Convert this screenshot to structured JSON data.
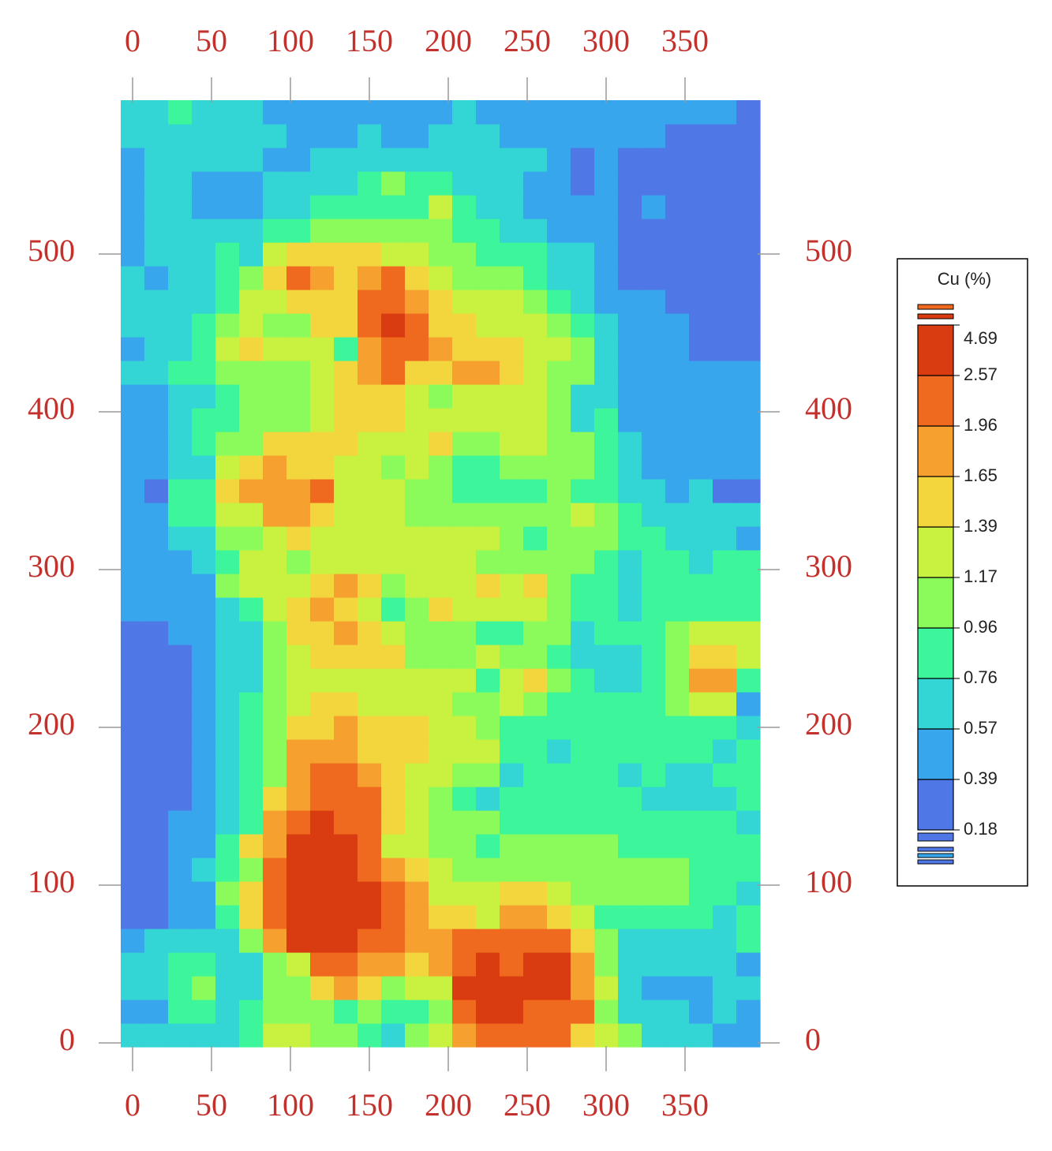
{
  "chart_data": {
    "type": "heatmap",
    "x": [
      0,
      15,
      30,
      45,
      60,
      75,
      90,
      105,
      120,
      135,
      150,
      165,
      180,
      195,
      210,
      225,
      240,
      255,
      270,
      285,
      300,
      315,
      330,
      345,
      360,
      375,
      390
    ],
    "y": [
      5,
      20,
      35,
      50,
      65,
      80,
      95,
      110,
      125,
      140,
      155,
      170,
      185,
      200,
      215,
      230,
      245,
      260,
      275,
      290,
      305,
      320,
      335,
      350,
      365,
      380,
      395,
      410,
      425,
      440,
      455,
      470,
      485,
      500,
      515,
      530,
      545,
      560,
      575,
      590
    ],
    "z": [
      [
        0.65,
        0.65,
        0.65,
        0.65,
        0.65,
        0.85,
        1.3,
        1.3,
        1.05,
        1.05,
        0.85,
        0.65,
        1.05,
        1.3,
        1.8,
        2.2,
        2.2,
        2.2,
        2.2,
        1.5,
        1.3,
        1.05,
        0.65,
        0.65,
        0.65,
        0.5,
        0.5
      ],
      [
        0.5,
        0.5,
        0.85,
        0.85,
        0.65,
        0.85,
        1.05,
        1.05,
        1.05,
        0.85,
        1.05,
        0.85,
        0.85,
        1.05,
        2.2,
        3,
        3,
        2.2,
        2.2,
        2.2,
        1.05,
        0.65,
        0.65,
        0.65,
        0.5,
        0.65,
        0.5
      ],
      [
        0.65,
        0.65,
        0.85,
        1.05,
        0.65,
        0.65,
        1.05,
        1.05,
        1.5,
        1.8,
        1.5,
        1.05,
        1.3,
        1.3,
        3,
        3,
        3,
        3,
        3,
        1.8,
        1.3,
        0.65,
        0.5,
        0.5,
        0.5,
        0.65,
        0.65
      ],
      [
        0.65,
        0.65,
        0.85,
        0.85,
        0.65,
        0.65,
        1.05,
        1.3,
        2.2,
        2.2,
        1.8,
        1.8,
        1.5,
        1.8,
        2.2,
        3,
        2.2,
        3,
        3,
        1.8,
        1.05,
        0.65,
        0.65,
        0.65,
        0.65,
        0.65,
        0.5
      ],
      [
        0.5,
        0.65,
        0.65,
        0.65,
        0.65,
        1.05,
        1.8,
        3,
        3,
        3,
        2.2,
        2.2,
        1.8,
        1.8,
        2.2,
        2.2,
        2.2,
        2.2,
        2.2,
        1.5,
        1.05,
        0.65,
        0.65,
        0.65,
        0.65,
        0.65,
        0.85
      ],
      [
        0.3,
        0.3,
        0.5,
        0.5,
        0.85,
        1.5,
        2.2,
        3,
        3,
        3,
        3,
        2.2,
        1.8,
        1.5,
        1.5,
        1.3,
        1.8,
        1.8,
        1.5,
        1.3,
        0.85,
        0.85,
        0.85,
        0.85,
        0.85,
        0.65,
        0.85
      ],
      [
        0.3,
        0.3,
        0.5,
        0.5,
        1.05,
        1.5,
        2.2,
        3,
        3,
        3,
        3,
        2.2,
        1.8,
        1.3,
        1.3,
        1.3,
        1.5,
        1.5,
        1.3,
        1.05,
        1.05,
        1.05,
        1.05,
        1.05,
        0.85,
        0.85,
        0.65
      ],
      [
        0.3,
        0.3,
        0.5,
        0.65,
        0.85,
        1.05,
        2.2,
        3,
        3,
        3,
        2.2,
        1.8,
        1.5,
        1.3,
        1.05,
        1.05,
        1.05,
        1.05,
        1.05,
        1.05,
        1.05,
        1.05,
        1.05,
        1.05,
        0.85,
        0.85,
        0.85
      ],
      [
        0.3,
        0.3,
        0.5,
        0.5,
        0.85,
        1.5,
        1.8,
        3,
        3,
        3,
        2.2,
        1.3,
        1.3,
        1.05,
        1.05,
        0.85,
        1.05,
        1.05,
        1.05,
        1.05,
        1.05,
        0.85,
        0.85,
        0.85,
        0.85,
        0.85,
        0.85
      ],
      [
        0.3,
        0.3,
        0.5,
        0.5,
        0.65,
        0.85,
        1.8,
        2.2,
        3,
        2.2,
        2.2,
        1.5,
        1.3,
        1.05,
        1.05,
        1.05,
        0.85,
        0.85,
        0.85,
        0.85,
        0.85,
        0.85,
        0.85,
        0.85,
        0.85,
        0.85,
        0.65
      ],
      [
        0.3,
        0.3,
        0.3,
        0.5,
        0.65,
        0.85,
        1.5,
        1.8,
        2.2,
        2.2,
        2.2,
        1.5,
        1.3,
        1.05,
        0.85,
        0.65,
        0.85,
        0.85,
        0.85,
        0.85,
        0.85,
        0.85,
        0.65,
        0.65,
        0.65,
        0.65,
        0.85
      ],
      [
        0.3,
        0.3,
        0.3,
        0.5,
        0.65,
        0.85,
        1.05,
        1.8,
        2.2,
        2.2,
        1.8,
        1.5,
        1.3,
        1.3,
        1.05,
        1.05,
        0.65,
        0.85,
        0.85,
        0.85,
        0.85,
        0.65,
        0.85,
        0.65,
        0.65,
        0.85,
        0.85
      ],
      [
        0.3,
        0.3,
        0.3,
        0.5,
        0.65,
        0.85,
        1.05,
        1.8,
        1.8,
        1.8,
        1.5,
        1.5,
        1.5,
        1.3,
        1.3,
        1.3,
        0.85,
        0.85,
        0.65,
        0.85,
        0.85,
        0.85,
        0.85,
        0.85,
        0.85,
        0.65,
        0.85
      ],
      [
        0.3,
        0.3,
        0.3,
        0.5,
        0.65,
        0.85,
        1.05,
        1.5,
        1.5,
        1.8,
        1.5,
        1.5,
        1.5,
        1.3,
        1.3,
        1.05,
        0.85,
        0.85,
        0.85,
        0.85,
        0.85,
        0.85,
        0.85,
        0.85,
        0.85,
        0.85,
        0.65
      ],
      [
        0.3,
        0.3,
        0.3,
        0.5,
        0.65,
        0.85,
        1.05,
        1.3,
        1.5,
        1.5,
        1.3,
        1.3,
        1.3,
        1.3,
        1.05,
        1.05,
        1.3,
        1.05,
        0.85,
        0.85,
        0.85,
        0.85,
        0.85,
        1.05,
        1.3,
        1.3,
        0.5
      ],
      [
        0.3,
        0.3,
        0.3,
        0.5,
        0.65,
        0.65,
        1.05,
        1.3,
        1.3,
        1.3,
        1.3,
        1.3,
        1.3,
        1.3,
        1.3,
        0.85,
        1.3,
        1.5,
        1.05,
        0.85,
        0.65,
        0.65,
        0.85,
        1.05,
        1.8,
        1.8,
        0.85
      ],
      [
        0.3,
        0.3,
        0.3,
        0.5,
        0.65,
        0.65,
        1.05,
        1.3,
        1.5,
        1.5,
        1.5,
        1.5,
        1.05,
        1.05,
        1.05,
        1.3,
        1.05,
        1.05,
        0.85,
        0.65,
        0.65,
        0.65,
        0.85,
        1.05,
        1.5,
        1.5,
        1.3
      ],
      [
        0.3,
        0.3,
        0.5,
        0.5,
        0.65,
        0.65,
        1.05,
        1.5,
        1.5,
        1.8,
        1.5,
        1.3,
        1.05,
        1.05,
        1.05,
        0.85,
        0.85,
        1.05,
        1.05,
        0.65,
        0.85,
        0.85,
        0.85,
        1.05,
        1.3,
        1.3,
        1.3
      ],
      [
        0.5,
        0.5,
        0.5,
        0.5,
        0.65,
        0.85,
        1.3,
        1.5,
        1.8,
        1.5,
        1.3,
        0.85,
        1.05,
        1.5,
        1.3,
        1.3,
        1.3,
        1.3,
        1.05,
        0.85,
        0.85,
        0.65,
        0.85,
        0.85,
        0.85,
        0.85,
        0.85
      ],
      [
        0.5,
        0.5,
        0.5,
        0.5,
        1.05,
        1.3,
        1.3,
        1.3,
        1.5,
        1.8,
        1.5,
        1.05,
        1.3,
        1.3,
        1.3,
        1.5,
        1.3,
        1.5,
        1.05,
        0.85,
        0.85,
        0.65,
        0.85,
        0.85,
        0.85,
        0.85,
        0.85
      ],
      [
        0.5,
        0.5,
        0.5,
        0.65,
        0.85,
        1.3,
        1.3,
        1.05,
        1.3,
        1.3,
        1.3,
        1.3,
        1.3,
        1.3,
        1.3,
        1.05,
        1.05,
        1.05,
        1.05,
        1.05,
        0.85,
        0.65,
        0.85,
        0.85,
        0.65,
        0.85,
        0.85
      ],
      [
        0.5,
        0.5,
        0.65,
        0.65,
        1.05,
        1.05,
        1.3,
        1.5,
        1.3,
        1.3,
        1.3,
        1.3,
        1.3,
        1.3,
        1.3,
        1.3,
        1.05,
        0.85,
        1.05,
        1.05,
        1.05,
        0.85,
        0.85,
        0.65,
        0.65,
        0.65,
        0.5
      ],
      [
        0.5,
        0.5,
        0.85,
        0.85,
        1.3,
        1.3,
        1.8,
        1.8,
        1.5,
        1.3,
        1.3,
        1.3,
        1.05,
        1.05,
        1.05,
        1.05,
        1.05,
        1.05,
        1.05,
        1.3,
        1.05,
        0.85,
        0.65,
        0.65,
        0.65,
        0.65,
        0.65
      ],
      [
        0.5,
        0.3,
        0.85,
        0.85,
        1.5,
        1.8,
        1.8,
        1.8,
        2.2,
        1.3,
        1.3,
        1.3,
        1.05,
        1.05,
        0.85,
        0.85,
        0.85,
        0.85,
        1.05,
        0.85,
        0.85,
        0.65,
        0.65,
        0.5,
        0.65,
        0.3,
        0.3
      ],
      [
        0.5,
        0.5,
        0.65,
        0.65,
        1.3,
        1.5,
        1.8,
        1.5,
        1.5,
        1.3,
        1.3,
        1.05,
        1.3,
        1.05,
        0.85,
        0.85,
        1.05,
        1.05,
        1.05,
        1.05,
        0.85,
        0.65,
        0.5,
        0.5,
        0.5,
        0.5,
        0.5
      ],
      [
        0.5,
        0.5,
        0.65,
        0.85,
        1.05,
        1.05,
        1.5,
        1.5,
        1.5,
        1.5,
        1.3,
        1.3,
        1.3,
        1.5,
        1.05,
        1.05,
        1.3,
        1.3,
        1.05,
        1.05,
        0.85,
        0.65,
        0.5,
        0.5,
        0.5,
        0.5,
        0.5
      ],
      [
        0.5,
        0.5,
        0.65,
        0.85,
        0.85,
        1.05,
        1.05,
        1.05,
        1.3,
        1.5,
        1.5,
        1.5,
        1.3,
        1.3,
        1.3,
        1.3,
        1.3,
        1.3,
        1.05,
        0.65,
        0.85,
        0.5,
        0.5,
        0.5,
        0.5,
        0.5,
        0.5
      ],
      [
        0.5,
        0.5,
        0.65,
        0.65,
        0.85,
        1.05,
        1.05,
        1.05,
        1.3,
        1.5,
        1.5,
        1.5,
        1.3,
        1.05,
        1.3,
        1.3,
        1.3,
        1.3,
        1.05,
        0.65,
        0.65,
        0.5,
        0.5,
        0.5,
        0.5,
        0.5,
        0.5
      ],
      [
        0.65,
        0.65,
        0.85,
        0.85,
        1.05,
        1.05,
        1.05,
        1.05,
        1.3,
        1.5,
        1.8,
        2.2,
        1.5,
        1.5,
        1.8,
        1.8,
        1.5,
        1.3,
        1.05,
        1.05,
        0.65,
        0.5,
        0.5,
        0.5,
        0.5,
        0.5,
        0.5
      ],
      [
        0.5,
        0.65,
        0.65,
        0.85,
        1.3,
        1.5,
        1.3,
        1.3,
        1.3,
        0.85,
        1.8,
        2.2,
        2.2,
        1.8,
        1.5,
        1.5,
        1.5,
        1.3,
        1.3,
        1.05,
        0.65,
        0.5,
        0.5,
        0.5,
        0.3,
        0.3,
        0.3
      ],
      [
        0.65,
        0.65,
        0.65,
        0.85,
        1.05,
        1.3,
        1.05,
        1.05,
        1.5,
        1.5,
        2.2,
        3,
        2.2,
        1.5,
        1.5,
        1.3,
        1.3,
        1.3,
        1.05,
        0.85,
        0.65,
        0.5,
        0.5,
        0.5,
        0.3,
        0.3,
        0.3
      ],
      [
        0.65,
        0.65,
        0.65,
        0.65,
        0.85,
        1.3,
        1.3,
        1.5,
        1.5,
        1.5,
        2.2,
        2.2,
        1.8,
        1.5,
        1.3,
        1.3,
        1.3,
        1.05,
        0.85,
        0.65,
        0.5,
        0.5,
        0.5,
        0.3,
        0.3,
        0.3,
        0.3
      ],
      [
        0.65,
        0.5,
        0.65,
        0.65,
        0.85,
        1.05,
        1.5,
        2.2,
        1.8,
        1.5,
        1.8,
        2.2,
        1.5,
        1.3,
        1.05,
        1.05,
        1.05,
        0.85,
        0.65,
        0.65,
        0.5,
        0.3,
        0.3,
        0.3,
        0.3,
        0.3,
        0.3
      ],
      [
        0.5,
        0.65,
        0.65,
        0.65,
        0.85,
        0.65,
        1.3,
        1.5,
        1.5,
        1.5,
        1.5,
        1.3,
        1.3,
        1.05,
        1.05,
        0.85,
        0.85,
        0.85,
        0.65,
        0.65,
        0.5,
        0.3,
        0.3,
        0.3,
        0.3,
        0.3,
        0.3
      ],
      [
        0.5,
        0.65,
        0.65,
        0.65,
        0.65,
        0.65,
        0.85,
        0.85,
        1.05,
        1.05,
        1.05,
        1.05,
        1.05,
        1.05,
        0.85,
        0.85,
        0.65,
        0.65,
        0.5,
        0.5,
        0.5,
        0.3,
        0.3,
        0.3,
        0.3,
        0.3,
        0.3
      ],
      [
        0.5,
        0.65,
        0.65,
        0.5,
        0.5,
        0.5,
        0.65,
        0.65,
        0.85,
        0.85,
        0.85,
        0.85,
        0.85,
        1.3,
        0.85,
        0.65,
        0.65,
        0.5,
        0.5,
        0.5,
        0.5,
        0.3,
        0.5,
        0.3,
        0.3,
        0.3,
        0.3
      ],
      [
        0.5,
        0.65,
        0.65,
        0.5,
        0.5,
        0.5,
        0.65,
        0.65,
        0.65,
        0.65,
        0.85,
        1.05,
        0.85,
        0.85,
        0.65,
        0.65,
        0.65,
        0.5,
        0.5,
        0.3,
        0.5,
        0.3,
        0.3,
        0.3,
        0.3,
        0.3,
        0.3
      ],
      [
        0.5,
        0.65,
        0.65,
        0.65,
        0.65,
        0.65,
        0.5,
        0.5,
        0.65,
        0.65,
        0.65,
        0.65,
        0.65,
        0.65,
        0.65,
        0.65,
        0.65,
        0.65,
        0.5,
        0.3,
        0.5,
        0.3,
        0.3,
        0.3,
        0.3,
        0.3,
        0.3
      ],
      [
        0.65,
        0.65,
        0.65,
        0.65,
        0.65,
        0.65,
        0.65,
        0.5,
        0.5,
        0.5,
        0.65,
        0.5,
        0.5,
        0.65,
        0.65,
        0.65,
        0.5,
        0.5,
        0.5,
        0.5,
        0.5,
        0.5,
        0.5,
        0.3,
        0.3,
        0.3,
        0.3
      ],
      [
        0.65,
        0.65,
        0.85,
        0.65,
        0.65,
        0.65,
        0.5,
        0.5,
        0.5,
        0.5,
        0.5,
        0.5,
        0.5,
        0.5,
        0.65,
        0.5,
        0.5,
        0.5,
        0.5,
        0.5,
        0.5,
        0.5,
        0.5,
        0.5,
        0.5,
        0.5,
        0.3
      ]
    ],
    "xlim": [
      -7.5,
      397.5
    ],
    "ylim": [
      -2.5,
      597.5
    ],
    "xticks": [
      0,
      50,
      100,
      150,
      200,
      250,
      300,
      350
    ],
    "yticks": [
      0,
      100,
      200,
      300,
      400,
      500
    ],
    "legend": {
      "title": "Cu (%)",
      "levels": [
        0.18,
        0.39,
        0.57,
        0.76,
        0.96,
        1.17,
        1.39,
        1.65,
        1.96,
        2.57,
        4.69
      ],
      "colors": [
        "#4f78e6",
        "#38a6ec",
        "#33d5d5",
        "#3df59a",
        "#8bfb5c",
        "#c8f23f",
        "#f3d53e",
        "#f6a02f",
        "#ef6a1f",
        "#d93c10"
      ]
    }
  }
}
